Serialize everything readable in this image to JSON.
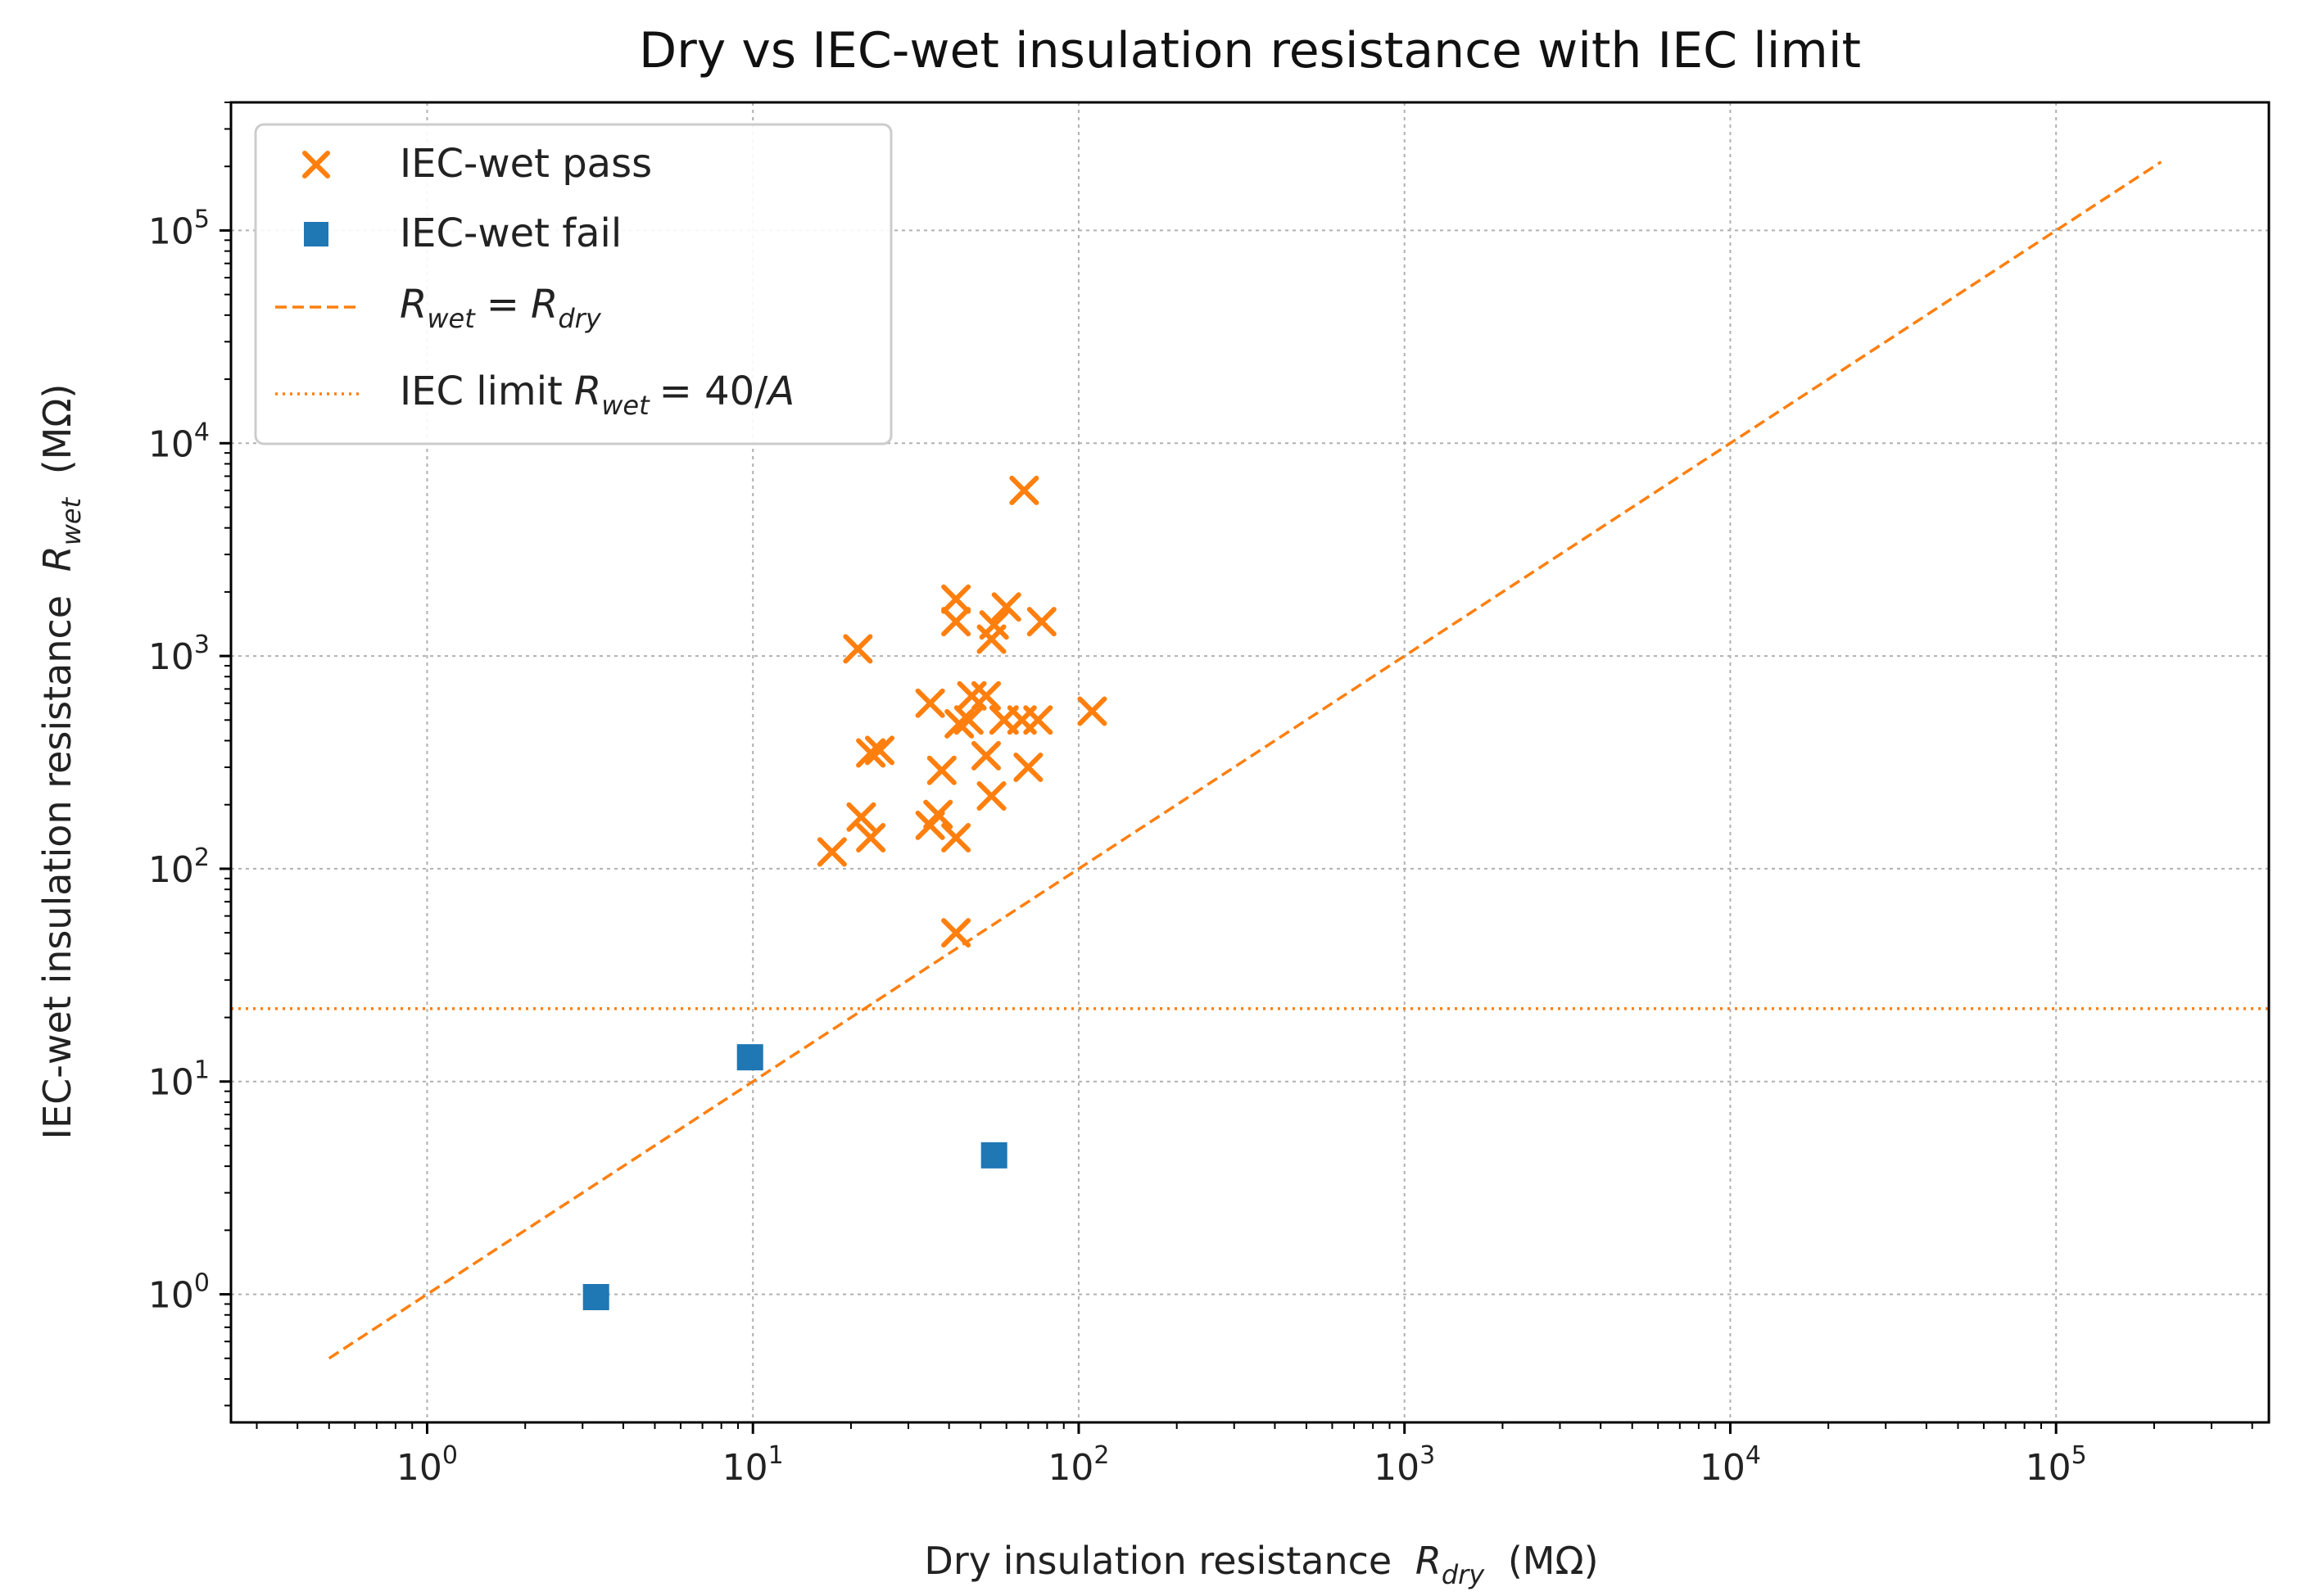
{
  "chart_data": {
    "type": "scatter",
    "title": "Dry vs IEC-wet insulation resistance with IEC limit",
    "xlabel": "Dry insulation resistance",
    "xlabel_symbol": "R",
    "xlabel_sub": "dry",
    "xlabel_unit": "(MΩ)",
    "ylabel": "IEC-wet insulation resistance",
    "ylabel_symbol": "R",
    "ylabel_sub": "wet",
    "ylabel_unit": "(MΩ)",
    "xscale": "log",
    "yscale": "log",
    "xlim": [
      0.25,
      450000
    ],
    "ylim": [
      0.25,
      400000
    ],
    "grid": true,
    "legend_position": "top-left",
    "x_ticks": [
      {
        "value": 1,
        "base": "10",
        "exp": "0"
      },
      {
        "value": 10,
        "base": "10",
        "exp": "1"
      },
      {
        "value": 100,
        "base": "10",
        "exp": "2"
      },
      {
        "value": 1000,
        "base": "10",
        "exp": "3"
      },
      {
        "value": 10000,
        "base": "10",
        "exp": "4"
      },
      {
        "value": 100000,
        "base": "10",
        "exp": "5"
      }
    ],
    "y_ticks": [
      {
        "value": 1,
        "base": "10",
        "exp": "0"
      },
      {
        "value": 10,
        "base": "10",
        "exp": "1"
      },
      {
        "value": 100,
        "base": "10",
        "exp": "2"
      },
      {
        "value": 1000,
        "base": "10",
        "exp": "3"
      },
      {
        "value": 10000,
        "base": "10",
        "exp": "4"
      },
      {
        "value": 100000,
        "base": "10",
        "exp": "5"
      }
    ],
    "series": [
      {
        "name": "IEC-wet pass",
        "marker": "x",
        "color": "#ff7f0e",
        "points": [
          [
            23,
            350
          ],
          [
            21,
            1080
          ],
          [
            17.5,
            120
          ],
          [
            21.5,
            175
          ],
          [
            23,
            140
          ],
          [
            24.5,
            360
          ],
          [
            35,
            160
          ],
          [
            35,
            600
          ],
          [
            37,
            180
          ],
          [
            38,
            290
          ],
          [
            42,
            140
          ],
          [
            42,
            1850
          ],
          [
            42,
            1450
          ],
          [
            43,
            480
          ],
          [
            46,
            500
          ],
          [
            47,
            650
          ],
          [
            52,
            650
          ],
          [
            52,
            340
          ],
          [
            54,
            220
          ],
          [
            54,
            1200
          ],
          [
            55,
            1400
          ],
          [
            59,
            500
          ],
          [
            60,
            1700
          ],
          [
            67,
            500
          ],
          [
            70,
            300
          ],
          [
            75,
            500
          ],
          [
            77,
            1450
          ],
          [
            68,
            6000
          ],
          [
            110,
            550
          ],
          [
            42,
            50
          ]
        ]
      },
      {
        "name": "IEC-wet fail",
        "marker": "s",
        "color": "#1f77b4",
        "points": [
          [
            3.3,
            0.97
          ],
          [
            9.8,
            13
          ],
          [
            55,
            4.5
          ]
        ]
      }
    ],
    "lines": [
      {
        "name": "R_wet = R_dry",
        "style": "dashed",
        "color": "#ff7f0e",
        "x_range": [
          0.5,
          210000
        ]
      },
      {
        "name": "IEC limit R_wet = 40/A",
        "style": "dotted",
        "color": "#ff7f0e",
        "y": 22
      }
    ],
    "legend": [
      {
        "label": "IEC-wet pass"
      },
      {
        "label": "IEC-wet fail"
      },
      {
        "label": "R_wet = R_dry",
        "symbol_a": "R",
        "sub_a": "wet",
        "op": "=",
        "symbol_b": "R",
        "sub_b": "dry"
      },
      {
        "label": "IEC limit R_wet = 40/A",
        "prefix": "IEC limit",
        "symbol": "R",
        "sub": "wet",
        "rhs": "= 40/",
        "rhs_symbol": "A"
      }
    ]
  }
}
